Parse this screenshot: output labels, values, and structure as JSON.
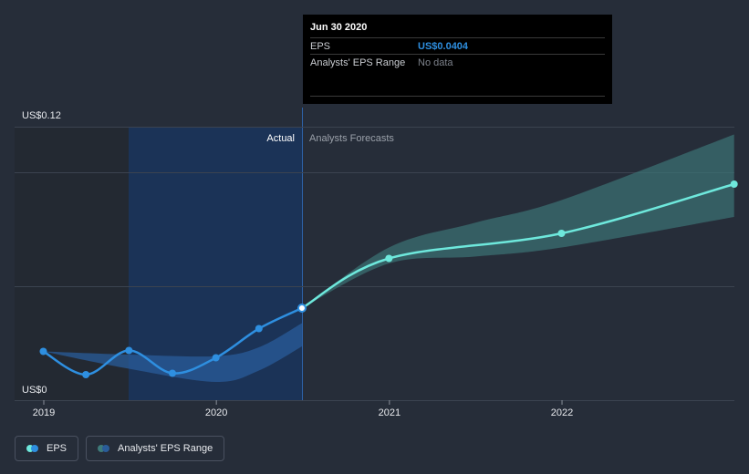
{
  "tooltip": {
    "date": "Jun 30 2020",
    "rows": [
      {
        "key": "EPS",
        "value": "US$0.0404"
      },
      {
        "key": "Analysts' EPS Range",
        "value": "No data"
      }
    ]
  },
  "labels": {
    "actual": "Actual",
    "forecast": "Analysts Forecasts"
  },
  "legend": [
    {
      "label": "EPS"
    },
    {
      "label": "Analysts' EPS Range"
    }
  ],
  "colors": {
    "background": "#262d39",
    "eps_actual": "#2e8fe0",
    "eps_forecast": "#6ee8dc",
    "range_forecast": "#3e7a7a",
    "range_actual": "#2a5c99",
    "highlight_band": "#1b3357",
    "tooltip_eps_value": "#2e8fe0"
  },
  "chart_data": {
    "type": "line",
    "title": "",
    "xlabel": "",
    "ylabel": "",
    "ylim": [
      0,
      0.12
    ],
    "y_ticks": [
      {
        "value": 0.12,
        "label": "US$0.12"
      },
      {
        "value": 0,
        "label": "US$0"
      }
    ],
    "x_ticks": [
      {
        "value": "2019-01-01",
        "label": "2019"
      },
      {
        "value": "2020-01-01",
        "label": "2020"
      },
      {
        "value": "2021-01-01",
        "label": "2021"
      },
      {
        "value": "2022-01-01",
        "label": "2022"
      }
    ],
    "x_range": [
      "2019-01-01",
      "2023-01-01"
    ],
    "highlighted_date": "2020-06-30",
    "series": [
      {
        "name": "EPS",
        "role": "actual",
        "points": [
          {
            "x": "2018-12-31",
            "y": 0.0214
          },
          {
            "x": "2019-03-31",
            "y": 0.0112
          },
          {
            "x": "2019-06-30",
            "y": 0.0218
          },
          {
            "x": "2019-09-30",
            "y": 0.0118
          },
          {
            "x": "2019-12-31",
            "y": 0.0186
          },
          {
            "x": "2020-03-31",
            "y": 0.0314
          },
          {
            "x": "2020-06-30",
            "y": 0.0404
          }
        ]
      },
      {
        "name": "EPS",
        "role": "forecast",
        "points": [
          {
            "x": "2020-06-30",
            "y": 0.0404
          },
          {
            "x": "2020-12-31",
            "y": 0.0622
          },
          {
            "x": "2021-12-31",
            "y": 0.0732
          },
          {
            "x": "2022-12-31",
            "y": 0.0948
          }
        ]
      },
      {
        "name": "Analysts' EPS Range",
        "role": "range_actual",
        "points": [
          {
            "x": "2018-12-31",
            "low": 0.0214,
            "high": 0.0214
          },
          {
            "x": "2019-06-30",
            "low": 0.0138,
            "high": 0.02
          },
          {
            "x": "2019-12-31",
            "low": 0.008,
            "high": 0.0193
          },
          {
            "x": "2020-03-31",
            "low": 0.013,
            "high": 0.0232
          },
          {
            "x": "2020-06-30",
            "low": 0.0236,
            "high": 0.0338
          }
        ]
      },
      {
        "name": "Analysts' EPS Range",
        "role": "range_forecast",
        "points": [
          {
            "x": "2020-06-30",
            "low": 0.0404,
            "high": 0.0404
          },
          {
            "x": "2020-12-31",
            "low": 0.06,
            "high": 0.067
          },
          {
            "x": "2021-06-30",
            "low": 0.063,
            "high": 0.0778
          },
          {
            "x": "2021-12-31",
            "low": 0.067,
            "high": 0.0878
          },
          {
            "x": "2022-12-31",
            "low": 0.0804,
            "high": 0.1166
          }
        ]
      }
    ]
  }
}
